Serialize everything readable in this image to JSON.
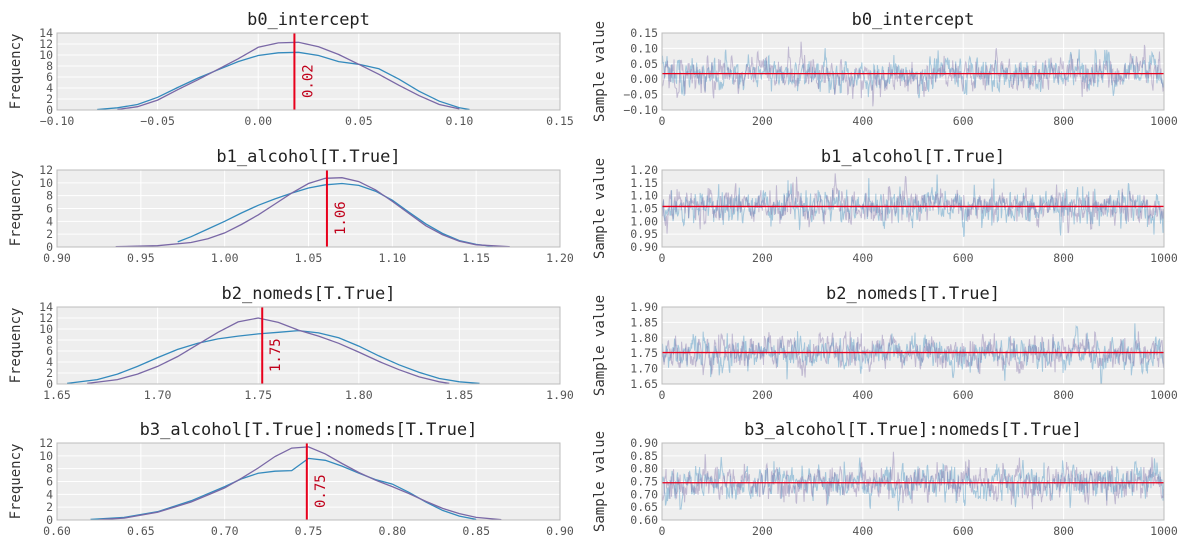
{
  "colors": {
    "panel_bg": "#eeeeee",
    "grid": "#ffffff",
    "frame": "#bcbcbc",
    "chain1": "#348abd",
    "chain2": "#7a68a6",
    "mean_line": "#e8001c",
    "mean_label": "#c0001a"
  },
  "chart_data": [
    {
      "type": "line",
      "kind": "kde",
      "title": "b0_intercept",
      "ylabel": "Frequency",
      "xlim": [
        -0.1,
        0.15
      ],
      "ylim": [
        0,
        14
      ],
      "xticks": [
        -0.1,
        -0.05,
        0.0,
        0.05,
        0.1,
        0.15
      ],
      "xtick_labels": [
        "−0.10",
        "−0.05",
        "0.00",
        "0.05",
        "0.10",
        "0.15"
      ],
      "yticks": [
        0,
        2,
        4,
        6,
        8,
        10,
        12,
        14
      ],
      "ytick_labels": [
        "0",
        "2",
        "4",
        "6",
        "8",
        "10",
        "12",
        "14"
      ],
      "mean": 0.018,
      "mean_label": "0.02",
      "grid": true,
      "series": [
        {
          "color": "chain1",
          "x": [
            -0.08,
            -0.07,
            -0.06,
            -0.05,
            -0.04,
            -0.03,
            -0.02,
            -0.01,
            0.0,
            0.01,
            0.02,
            0.03,
            0.04,
            0.05,
            0.06,
            0.07,
            0.08,
            0.09,
            0.1,
            0.105
          ],
          "y": [
            0.1,
            0.4,
            1.0,
            2.3,
            4.1,
            5.8,
            7.3,
            8.8,
            9.9,
            10.4,
            10.5,
            9.9,
            8.8,
            8.3,
            7.5,
            5.6,
            3.4,
            1.6,
            0.4,
            0.1
          ]
        },
        {
          "color": "chain2",
          "x": [
            -0.07,
            -0.06,
            -0.05,
            -0.04,
            -0.03,
            -0.02,
            -0.01,
            0.0,
            0.01,
            0.02,
            0.03,
            0.04,
            0.05,
            0.06,
            0.07,
            0.08,
            0.09,
            0.1
          ],
          "y": [
            0.1,
            0.6,
            1.8,
            3.7,
            5.5,
            7.4,
            9.3,
            11.4,
            12.2,
            12.3,
            11.5,
            10.1,
            8.3,
            6.5,
            4.5,
            2.6,
            1.0,
            0.2
          ]
        }
      ]
    },
    {
      "type": "line",
      "kind": "trace",
      "title": "b0_intercept",
      "ylabel": "Sample value",
      "xlim": [
        0,
        1000
      ],
      "ylim": [
        -0.1,
        0.15
      ],
      "xticks": [
        0,
        200,
        400,
        600,
        800,
        1000
      ],
      "xtick_labels": [
        "0",
        "200",
        "400",
        "600",
        "800",
        "1000"
      ],
      "yticks": [
        -0.1,
        -0.05,
        0.0,
        0.05,
        0.1,
        0.15
      ],
      "ytick_labels": [
        "−0.10",
        "−0.05",
        "0.00",
        "0.05",
        "0.10",
        "0.15"
      ],
      "mean": 0.018,
      "spread": 0.028,
      "n_samples": 1000,
      "grid": true
    },
    {
      "type": "line",
      "kind": "kde",
      "title": "b1_alcohol[T.True]",
      "ylabel": "Frequency",
      "xlim": [
        0.9,
        1.2
      ],
      "ylim": [
        0,
        12
      ],
      "xticks": [
        0.9,
        0.95,
        1.0,
        1.05,
        1.1,
        1.15,
        1.2
      ],
      "xtick_labels": [
        "0.90",
        "0.95",
        "1.00",
        "1.05",
        "1.10",
        "1.15",
        "1.20"
      ],
      "yticks": [
        0,
        2,
        4,
        6,
        8,
        10,
        12
      ],
      "ytick_labels": [
        "0",
        "2",
        "4",
        "6",
        "8",
        "10",
        "12"
      ],
      "mean": 1.061,
      "mean_label": "1.06",
      "grid": true,
      "series": [
        {
          "color": "chain1",
          "x": [
            0.972,
            0.98,
            0.99,
            1.0,
            1.01,
            1.02,
            1.03,
            1.04,
            1.05,
            1.06,
            1.07,
            1.08,
            1.09,
            1.1,
            1.11,
            1.12,
            1.13,
            1.14,
            1.15,
            1.16
          ],
          "y": [
            0.8,
            1.6,
            2.8,
            4.0,
            5.3,
            6.5,
            7.5,
            8.4,
            9.2,
            9.7,
            9.9,
            9.6,
            8.7,
            7.3,
            5.4,
            3.6,
            2.1,
            1.0,
            0.4,
            0.1
          ]
        },
        {
          "color": "chain2",
          "x": [
            0.935,
            0.96,
            0.98,
            0.99,
            1.0,
            1.01,
            1.02,
            1.03,
            1.04,
            1.05,
            1.06,
            1.07,
            1.08,
            1.09,
            1.1,
            1.11,
            1.12,
            1.13,
            1.14,
            1.15,
            1.17
          ],
          "y": [
            0.05,
            0.2,
            0.7,
            1.3,
            2.2,
            3.5,
            5.0,
            6.7,
            8.4,
            9.9,
            10.7,
            10.8,
            10.2,
            8.9,
            7.1,
            5.2,
            3.3,
            1.9,
            0.9,
            0.35,
            0.05
          ]
        }
      ]
    },
    {
      "type": "line",
      "kind": "trace",
      "title": "b1_alcohol[T.True]",
      "ylabel": "Sample value",
      "xlim": [
        0,
        1000
      ],
      "ylim": [
        0.9,
        1.2
      ],
      "xticks": [
        0,
        200,
        400,
        600,
        800,
        1000
      ],
      "xtick_labels": [
        "0",
        "200",
        "400",
        "600",
        "800",
        "1000"
      ],
      "yticks": [
        0.9,
        0.95,
        1.0,
        1.05,
        1.1,
        1.15,
        1.2
      ],
      "ytick_labels": [
        "0.90",
        "0.95",
        "1.00",
        "1.05",
        "1.10",
        "1.15",
        "1.20"
      ],
      "mean": 1.058,
      "spread": 0.035,
      "n_samples": 1000,
      "grid": true
    },
    {
      "type": "line",
      "kind": "kde",
      "title": "b2_nomeds[T.True]",
      "ylabel": "Frequency",
      "xlim": [
        1.65,
        1.9
      ],
      "ylim": [
        0,
        14
      ],
      "xticks": [
        1.65,
        1.7,
        1.75,
        1.8,
        1.85,
        1.9
      ],
      "xtick_labels": [
        "1.65",
        "1.70",
        "1.75",
        "1.80",
        "1.85",
        "1.90"
      ],
      "yticks": [
        0,
        2,
        4,
        6,
        8,
        10,
        12,
        14
      ],
      "ytick_labels": [
        "0",
        "2",
        "4",
        "6",
        "8",
        "10",
        "12",
        "14"
      ],
      "mean": 1.752,
      "mean_label": "1.75",
      "grid": true,
      "series": [
        {
          "color": "chain1",
          "x": [
            1.655,
            1.67,
            1.68,
            1.69,
            1.7,
            1.71,
            1.72,
            1.73,
            1.74,
            1.75,
            1.76,
            1.77,
            1.78,
            1.79,
            1.8,
            1.81,
            1.82,
            1.83,
            1.84,
            1.85,
            1.86
          ],
          "y": [
            0.1,
            0.8,
            1.8,
            3.2,
            4.8,
            6.3,
            7.4,
            8.2,
            8.7,
            9.1,
            9.4,
            9.7,
            9.3,
            8.4,
            6.9,
            5.1,
            3.5,
            2.1,
            1.0,
            0.4,
            0.1
          ]
        },
        {
          "color": "chain2",
          "x": [
            1.665,
            1.68,
            1.69,
            1.7,
            1.71,
            1.72,
            1.73,
            1.74,
            1.75,
            1.76,
            1.77,
            1.78,
            1.79,
            1.8,
            1.81,
            1.82,
            1.83,
            1.84,
            1.845
          ],
          "y": [
            0.1,
            0.8,
            1.8,
            3.2,
            5.0,
            7.2,
            9.4,
            11.3,
            12.0,
            11.2,
            9.8,
            8.7,
            7.4,
            5.8,
            4.1,
            2.6,
            1.3,
            0.4,
            0.1
          ]
        }
      ]
    },
    {
      "type": "line",
      "kind": "trace",
      "title": "b2_nomeds[T.True]",
      "ylabel": "Sample value",
      "xlim": [
        0,
        1000
      ],
      "ylim": [
        1.65,
        1.9
      ],
      "xticks": [
        0,
        200,
        400,
        600,
        800,
        1000
      ],
      "xtick_labels": [
        "0",
        "200",
        "400",
        "600",
        "800",
        "1000"
      ],
      "yticks": [
        1.65,
        1.7,
        1.75,
        1.8,
        1.85,
        1.9
      ],
      "ytick_labels": [
        "1.65",
        "1.70",
        "1.75",
        "1.80",
        "1.85",
        "1.90"
      ],
      "mean": 1.752,
      "spread": 0.028,
      "n_samples": 1000,
      "grid": true
    },
    {
      "type": "line",
      "kind": "kde",
      "title": "b3_alcohol[T.True]:nomeds[T.True]",
      "ylabel": "Frequency",
      "xlim": [
        0.6,
        0.9
      ],
      "ylim": [
        0,
        12
      ],
      "xticks": [
        0.6,
        0.65,
        0.7,
        0.75,
        0.8,
        0.85,
        0.9
      ],
      "xtick_labels": [
        "0.60",
        "0.65",
        "0.70",
        "0.75",
        "0.80",
        "0.85",
        "0.90"
      ],
      "yticks": [
        0,
        2,
        4,
        6,
        8,
        10,
        12
      ],
      "ytick_labels": [
        "0",
        "2",
        "4",
        "6",
        "8",
        "10",
        "12"
      ],
      "mean": 0.749,
      "mean_label": "0.75",
      "grid": true,
      "series": [
        {
          "color": "chain1",
          "x": [
            0.62,
            0.64,
            0.66,
            0.68,
            0.69,
            0.7,
            0.71,
            0.72,
            0.73,
            0.74,
            0.75,
            0.76,
            0.77,
            0.78,
            0.79,
            0.8,
            0.81,
            0.82,
            0.83,
            0.84,
            0.85
          ],
          "y": [
            0.1,
            0.4,
            1.3,
            3.0,
            4.1,
            5.2,
            6.4,
            7.3,
            7.6,
            7.7,
            9.6,
            9.3,
            8.4,
            7.3,
            6.3,
            5.6,
            4.3,
            2.8,
            1.5,
            0.6,
            0.1
          ]
        },
        {
          "color": "chain2",
          "x": [
            0.625,
            0.64,
            0.66,
            0.68,
            0.69,
            0.7,
            0.71,
            0.72,
            0.73,
            0.74,
            0.75,
            0.76,
            0.77,
            0.78,
            0.79,
            0.8,
            0.81,
            0.82,
            0.83,
            0.84,
            0.85,
            0.865
          ],
          "y": [
            0.05,
            0.3,
            1.2,
            2.8,
            3.9,
            5.0,
            6.5,
            8.1,
            9.9,
            11.2,
            11.4,
            10.3,
            8.8,
            7.4,
            6.2,
            5.2,
            4.1,
            2.9,
            1.8,
            1.0,
            0.4,
            0.05
          ]
        }
      ]
    },
    {
      "type": "line",
      "kind": "trace",
      "title": "b3_alcohol[T.True]:nomeds[T.True]",
      "ylabel": "Sample value",
      "xlim": [
        0,
        1000
      ],
      "ylim": [
        0.6,
        0.9
      ],
      "xticks": [
        0,
        200,
        400,
        600,
        800,
        1000
      ],
      "xtick_labels": [
        "0",
        "200",
        "400",
        "600",
        "800",
        "1000"
      ],
      "yticks": [
        0.6,
        0.65,
        0.7,
        0.75,
        0.8,
        0.85,
        0.9
      ],
      "ytick_labels": [
        "0.60",
        "0.65",
        "0.70",
        "0.75",
        "0.80",
        "0.85",
        "0.90"
      ],
      "mean": 0.745,
      "spread": 0.035,
      "n_samples": 1000,
      "grid": true
    }
  ]
}
